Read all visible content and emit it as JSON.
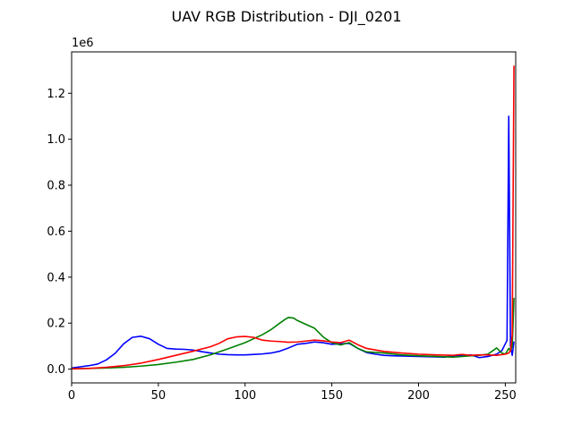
{
  "chart_data": {
    "type": "line",
    "title": "UAV RGB Distribution - DJI_0201",
    "xlabel": "",
    "ylabel": "",
    "offset_text": "1e6",
    "xlim": [
      0,
      256
    ],
    "ylim": [
      -60000,
      1380000
    ],
    "x_ticks": [
      0,
      50,
      100,
      150,
      200,
      250
    ],
    "y_ticks": [
      0,
      200000,
      400000,
      600000,
      800000,
      1000000,
      1200000
    ],
    "y_tick_labels": [
      "0.0",
      "0.2",
      "0.4",
      "0.6",
      "0.8",
      "1.0",
      "1.2"
    ],
    "grid": false,
    "legend": null,
    "series": [
      {
        "color": "#0000ff",
        "x": [
          0,
          5,
          10,
          15,
          20,
          25,
          30,
          35,
          40,
          45,
          50,
          55,
          60,
          65,
          70,
          75,
          80,
          85,
          90,
          95,
          100,
          105,
          110,
          115,
          120,
          125,
          130,
          135,
          140,
          145,
          150,
          155,
          160,
          165,
          170,
          175,
          180,
          185,
          190,
          195,
          200,
          205,
          210,
          215,
          220,
          225,
          230,
          235,
          240,
          245,
          248,
          250,
          251,
          252,
          253,
          254,
          255
        ],
        "y": [
          5000,
          10000,
          15000,
          22000,
          40000,
          68000,
          110000,
          138000,
          143000,
          132000,
          108000,
          90000,
          87000,
          86000,
          83000,
          76000,
          70000,
          65000,
          63000,
          62000,
          62000,
          64000,
          66000,
          70000,
          78000,
          92000,
          108000,
          112000,
          118000,
          115000,
          108000,
          110000,
          112000,
          90000,
          72000,
          65000,
          60000,
          58000,
          57000,
          56000,
          55000,
          54000,
          53000,
          52000,
          58000,
          60000,
          62000,
          50000,
          55000,
          65000,
          80000,
          110000,
          125000,
          1100000,
          100000,
          60000,
          120000
        ]
      },
      {
        "color": "#008000",
        "x": [
          0,
          10,
          20,
          30,
          40,
          50,
          60,
          70,
          80,
          90,
          100,
          110,
          115,
          120,
          123,
          125,
          128,
          130,
          135,
          140,
          145,
          150,
          155,
          160,
          165,
          170,
          180,
          190,
          200,
          210,
          220,
          225,
          230,
          235,
          240,
          245,
          248,
          250,
          252,
          253,
          254,
          255
        ],
        "y": [
          2000,
          3000,
          5000,
          8000,
          13000,
          20000,
          30000,
          42000,
          62000,
          88000,
          115000,
          150000,
          172000,
          200000,
          216000,
          225000,
          222000,
          212000,
          195000,
          178000,
          140000,
          115000,
          105000,
          115000,
          90000,
          75000,
          70000,
          62000,
          58000,
          55000,
          52000,
          55000,
          58000,
          60000,
          65000,
          92000,
          70000,
          65000,
          90000,
          80000,
          100000,
          310000
        ]
      },
      {
        "color": "#ff0000",
        "x": [
          0,
          10,
          20,
          30,
          40,
          50,
          60,
          70,
          80,
          85,
          90,
          95,
          100,
          105,
          110,
          115,
          120,
          125,
          130,
          135,
          140,
          145,
          150,
          155,
          160,
          165,
          170,
          180,
          190,
          200,
          210,
          220,
          225,
          230,
          235,
          240,
          245,
          250,
          252,
          253,
          254,
          255
        ],
        "y": [
          1000,
          3000,
          8000,
          15000,
          26000,
          42000,
          60000,
          78000,
          97000,
          112000,
          132000,
          140000,
          142000,
          138000,
          126000,
          122000,
          120000,
          117000,
          118000,
          122000,
          126000,
          123000,
          118000,
          115000,
          126000,
          106000,
          90000,
          77000,
          70000,
          65000,
          62000,
          60000,
          64000,
          60000,
          62000,
          62000,
          60000,
          65000,
          70000,
          80000,
          150000,
          1320000
        ]
      }
    ]
  }
}
